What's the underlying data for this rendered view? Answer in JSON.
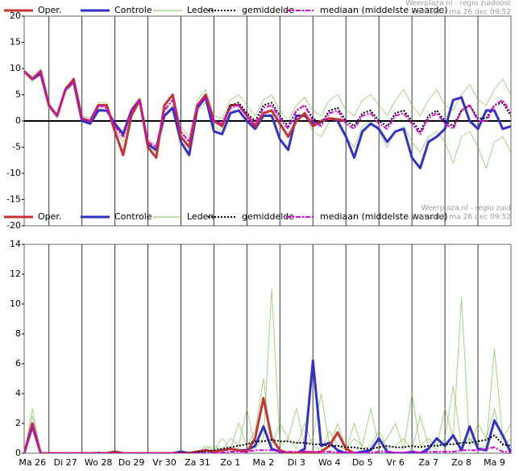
{
  "chart_data": [
    {
      "type": "line",
      "source": "Weerplaza.nl - regio zuidoost",
      "created": "Gemaakt: ma 26 dec 09:52",
      "x": [
        0,
        1,
        2,
        3,
        4,
        5,
        6,
        7,
        8,
        9,
        10,
        11,
        12,
        13,
        14,
        15,
        16,
        17,
        18,
        19,
        20,
        21,
        22,
        23,
        24,
        25,
        26,
        27,
        28,
        29,
        30,
        31,
        32,
        33,
        34,
        35,
        36,
        37,
        38,
        39,
        40,
        41,
        42,
        43,
        44,
        45,
        46,
        47,
        48,
        49,
        50,
        51,
        52,
        53,
        54,
        55,
        56,
        57,
        58,
        59
      ],
      "xlim": [
        0,
        59
      ],
      "xgrid": [
        3,
        7,
        11,
        15,
        19,
        23,
        27,
        31,
        35,
        39,
        43,
        47,
        51,
        55
      ],
      "ylim": [
        -20,
        20
      ],
      "yticks": [
        -20,
        -15,
        -10,
        -5,
        0,
        5,
        10,
        15,
        20
      ],
      "zeroline": true,
      "members": {
        "name": "Leden",
        "color": "#7cc04c",
        "values": [
          [
            9.5,
            8.5,
            10,
            3.5,
            1,
            6.5,
            8,
            1,
            0.5,
            3.5,
            3.5,
            -1,
            -2.5,
            2.5,
            4.5,
            -3.5,
            -4.5,
            2.5,
            5,
            -1,
            -3,
            4,
            6,
            1,
            0.5,
            4,
            5,
            3,
            1,
            4,
            5,
            2,
            0,
            3,
            4.5,
            2,
            1,
            4,
            5,
            2,
            1,
            4,
            5,
            3,
            1,
            4,
            6,
            3,
            1,
            4,
            6,
            3,
            2,
            5,
            7,
            4,
            3,
            6,
            8,
            5
          ],
          [
            9,
            7.5,
            9,
            2.5,
            0.5,
            5.5,
            7,
            0,
            -0.5,
            2.5,
            2,
            -1.5,
            -4,
            1.5,
            3.5,
            -5,
            -6,
            1,
            3,
            -3,
            -5,
            2,
            3.5,
            -1,
            -2,
            2,
            2,
            0,
            -1.5,
            1.5,
            2,
            -1,
            -3,
            0,
            1,
            -2,
            -3,
            0,
            0.5,
            -3,
            -5,
            -1,
            0,
            -2,
            -5,
            -2,
            -1,
            -4,
            -6,
            -3,
            -2,
            -4,
            -8,
            -3,
            -2,
            -5,
            -9,
            -4,
            -3,
            -6
          ]
        ]
      },
      "series": [
        {
          "name": "Oper.",
          "color": "#c83232",
          "style": "solid",
          "values": [
            9.5,
            8,
            9.5,
            3,
            1,
            6,
            8,
            0.5,
            0,
            3,
            3,
            -2,
            -6.5,
            1,
            4,
            -5,
            -7,
            3,
            5,
            -3,
            -5,
            3,
            5,
            0,
            -1,
            3,
            3,
            1,
            -1,
            1.5,
            2,
            -0.5,
            -3,
            0,
            1.5,
            -1,
            0,
            0.5,
            0.3,
            0,
            null,
            null,
            null,
            null,
            null,
            null,
            null,
            null,
            null,
            null,
            null,
            null,
            null,
            null,
            null,
            null,
            null,
            null,
            null,
            null
          ]
        },
        {
          "name": "Controle",
          "color": "#3232c8",
          "style": "solid",
          "values": [
            9.5,
            8,
            9,
            3,
            1,
            6,
            7.5,
            0,
            -0.5,
            2,
            2,
            -0.5,
            -2.5,
            2,
            4,
            -4.5,
            -5.5,
            1,
            2.5,
            -4,
            -6.5,
            2.5,
            4.5,
            -2,
            -2.5,
            1.5,
            2,
            0,
            -1.5,
            1,
            1,
            -3.5,
            -5.5,
            1,
            1,
            -0.5,
            0,
            0.5,
            0,
            -3,
            -7,
            -2,
            -0.5,
            -1.5,
            -4,
            -2,
            -1.5,
            -7,
            -9,
            -4,
            -3,
            -1.5,
            4,
            4.5,
            0,
            -1.5,
            2,
            2,
            -1.5,
            -1
          ]
        },
        {
          "name": "gemiddelde",
          "color": "#000000",
          "style": "dotted",
          "values": [
            9.5,
            8,
            9.5,
            3,
            1,
            6,
            7.5,
            0.5,
            0,
            3,
            2.5,
            -1,
            -3,
            2,
            4,
            -4,
            -5,
            2,
            4,
            -2,
            -4,
            3,
            4.5,
            0,
            -0.5,
            3,
            3.5,
            1.5,
            0,
            3,
            3.5,
            1,
            -1,
            2,
            3,
            0.5,
            -0.5,
            2,
            2.5,
            0,
            -1,
            1.5,
            2,
            0,
            -1,
            1.5,
            2,
            0,
            -2,
            1,
            2,
            0,
            -1,
            2,
            3,
            0.5,
            0.5,
            3,
            3.5,
            1
          ]
        },
        {
          "name": "mediaan (middelste waarde)",
          "color": "#e000e0",
          "style": "dashdot",
          "values": [
            9.5,
            8,
            9.5,
            3,
            1,
            6,
            7.5,
            0.5,
            0,
            3,
            2.5,
            -1,
            -3,
            2,
            4,
            -4,
            -5,
            2,
            4,
            -2,
            -4,
            3,
            4.5,
            0,
            -0.5,
            2.5,
            3,
            1,
            -0.5,
            2.5,
            3,
            0.5,
            -1.5,
            2,
            3,
            0,
            -1,
            1.5,
            2,
            -0.5,
            -1.5,
            1,
            1.5,
            -0.5,
            -1.5,
            1,
            1.5,
            -0.5,
            -2.5,
            0.5,
            1.5,
            -0.5,
            -1.5,
            2,
            3,
            0,
            0,
            3,
            4,
            1.5
          ]
        }
      ]
    },
    {
      "type": "line",
      "source": "Weerplaza.nl - regio zuid",
      "created": "Gemaakt: ma 26 dec 09:52",
      "x": [
        0,
        1,
        2,
        3,
        4,
        5,
        6,
        7,
        8,
        9,
        10,
        11,
        12,
        13,
        14,
        15,
        16,
        17,
        18,
        19,
        20,
        21,
        22,
        23,
        24,
        25,
        26,
        27,
        28,
        29,
        30,
        31,
        32,
        33,
        34,
        35,
        36,
        37,
        38,
        39,
        40,
        41,
        42,
        43,
        44,
        45,
        46,
        47,
        48,
        49,
        50,
        51,
        52,
        53,
        54,
        55,
        56,
        57,
        58,
        59
      ],
      "xlim": [
        0,
        59
      ],
      "xgrid": [
        3,
        7,
        11,
        15,
        19,
        23,
        27,
        31,
        35,
        39,
        43,
        47,
        51,
        55
      ],
      "xticks": [
        {
          "value": 1,
          "label": "Ma 26"
        },
        {
          "value": 5,
          "label": "Di 27"
        },
        {
          "value": 9,
          "label": "Wo 28"
        },
        {
          "value": 13,
          "label": "Do 29"
        },
        {
          "value": 17,
          "label": "Vr 30"
        },
        {
          "value": 21,
          "label": "Za 31"
        },
        {
          "value": 25,
          "label": "Zo 1"
        },
        {
          "value": 29,
          "label": "Ma 2"
        },
        {
          "value": 33,
          "label": "Di 3"
        },
        {
          "value": 37,
          "label": "Wo 4"
        },
        {
          "value": 41,
          "label": "Do 5"
        },
        {
          "value": 45,
          "label": "Vr 6"
        },
        {
          "value": 49,
          "label": "Za 7"
        },
        {
          "value": 53,
          "label": "Zo 8"
        },
        {
          "value": 57,
          "label": "Ma 9"
        }
      ],
      "ylim": [
        0,
        14
      ],
      "yticks": [
        0,
        2,
        4,
        6,
        8,
        10,
        12,
        14
      ],
      "zeroline": false,
      "members": {
        "name": "Leden",
        "color": "#7cc04c",
        "values": [
          [
            0,
            3,
            0,
            0,
            0,
            0,
            0,
            0,
            0,
            0,
            0,
            0,
            0,
            0,
            0,
            0,
            0,
            0,
            0,
            0,
            0,
            0,
            0.5,
            0.2,
            1,
            0.3,
            2,
            0.5,
            1.5,
            5,
            0.5,
            2,
            1,
            3,
            0.5,
            1,
            4,
            0.5,
            2,
            0.3,
            1,
            0.5,
            3,
            0.5,
            1,
            2,
            0.3,
            4,
            0.5,
            1,
            0.5,
            3,
            1,
            10.4,
            0.5,
            2,
            1,
            3,
            0.5,
            1
          ],
          [
            0,
            2.5,
            0,
            0,
            0,
            0,
            0,
            0,
            0,
            0,
            0,
            0,
            0,
            0,
            0,
            0,
            0,
            0,
            0,
            0,
            0,
            0.1,
            0.3,
            0.5,
            0.2,
            1,
            0.5,
            3,
            0.3,
            1,
            11,
            0.5,
            1,
            0.3,
            2,
            0.5,
            0.2,
            1.5,
            0.5,
            0.2,
            2,
            0.3,
            0.5,
            1.5,
            0.3,
            0.5,
            1,
            0.2,
            2.5,
            0.5,
            0.3,
            1,
            4.5,
            0.5,
            1,
            0.3,
            0.5,
            7,
            1,
            2
          ]
        ]
      },
      "series": [
        {
          "name": "Oper.",
          "color": "#c83232",
          "style": "solid",
          "values": [
            0,
            2,
            0,
            0,
            0,
            0,
            0,
            0,
            0,
            0,
            0,
            0.1,
            0,
            0,
            0,
            0,
            0,
            0,
            0,
            0,
            0,
            0.1,
            0.2,
            0.1,
            0.2,
            0.3,
            0.2,
            0.1,
            1,
            3.7,
            1,
            0.2,
            0,
            0,
            0.1,
            0,
            0.1,
            0.5,
            1.4,
            0.3,
            0,
            null,
            null,
            null,
            null,
            null,
            null,
            null,
            null,
            null,
            null,
            null,
            null,
            null,
            null,
            null,
            null,
            null,
            null,
            null
          ]
        },
        {
          "name": "Controle",
          "color": "#3232c8",
          "style": "solid",
          "values": [
            0,
            1.8,
            0,
            0,
            0,
            0,
            0,
            0,
            0,
            0,
            0,
            0.1,
            0,
            0,
            0,
            0,
            0,
            0,
            0,
            0.1,
            0,
            0.1,
            0.2,
            0.1,
            0.2,
            0.3,
            0.2,
            0.2,
            0.5,
            1.8,
            0.3,
            0.1,
            0,
            0,
            0.3,
            6.2,
            0.5,
            0.7,
            0.2,
            0,
            0,
            0.1,
            0.2,
            1,
            0.1,
            0,
            0,
            0.1,
            0,
            0.3,
            1,
            0.5,
            1.2,
            0.2,
            1.8,
            0.3,
            0.2,
            2.2,
            1.2,
            0
          ]
        },
        {
          "name": "gemiddelde",
          "color": "#000000",
          "style": "dotted",
          "values": [
            0,
            2,
            0,
            0,
            0,
            0,
            0,
            0,
            0,
            0.05,
            0,
            0.05,
            0,
            0,
            0,
            0,
            0,
            0,
            0,
            0.05,
            0.05,
            0.1,
            0.1,
            0.2,
            0.3,
            0.4,
            0.5,
            0.6,
            0.8,
            0.8,
            0.9,
            0.8,
            0.8,
            0.7,
            0.7,
            0.6,
            0.6,
            0.5,
            0.5,
            0.4,
            0.4,
            0.3,
            0.3,
            0.4,
            0.5,
            0.4,
            0.4,
            0.5,
            0.4,
            0.5,
            0.5,
            0.6,
            0.6,
            0.7,
            0.7,
            0.8,
            0.9,
            1.2,
            0.6,
            0.5
          ]
        },
        {
          "name": "mediaan (middelste waarde)",
          "color": "#e000e0",
          "style": "dashdot",
          "values": [
            0,
            2,
            0,
            0,
            0,
            0,
            0,
            0,
            0,
            0,
            0,
            0,
            0,
            0,
            0,
            0,
            0,
            0,
            0,
            0,
            0,
            0,
            0,
            0,
            0.05,
            0.1,
            0.1,
            0.1,
            0.2,
            0.2,
            0.2,
            0.1,
            0.1,
            0.1,
            0.1,
            0.1,
            0.1,
            0.1,
            0.05,
            0.05,
            0.05,
            0,
            0.05,
            0.1,
            0.1,
            0.05,
            0.05,
            0.1,
            0.05,
            0.1,
            0.1,
            0.1,
            0.1,
            0.2,
            0.2,
            0.2,
            0.3,
            0.4,
            0.1,
            0.1
          ]
        }
      ]
    }
  ]
}
